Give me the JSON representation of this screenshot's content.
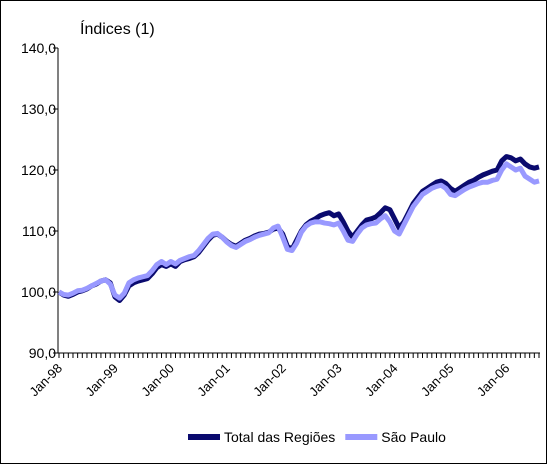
{
  "chart_data": {
    "type": "line",
    "title": "Índices (1)",
    "categories": [
      "Jan-98",
      null,
      null,
      null,
      null,
      null,
      null,
      null,
      null,
      null,
      null,
      null,
      "Jan-99",
      null,
      null,
      null,
      null,
      null,
      null,
      null,
      null,
      null,
      null,
      null,
      "Jan-00",
      null,
      null,
      null,
      null,
      null,
      null,
      null,
      null,
      null,
      null,
      null,
      "Jan-01",
      null,
      null,
      null,
      null,
      null,
      null,
      null,
      null,
      null,
      null,
      null,
      "Jan-02",
      null,
      null,
      null,
      null,
      null,
      null,
      null,
      null,
      null,
      null,
      null,
      "Jan-03",
      null,
      null,
      null,
      null,
      null,
      null,
      null,
      null,
      null,
      null,
      null,
      "Jan-04",
      null,
      null,
      null,
      null,
      null,
      null,
      null,
      null,
      null,
      null,
      null,
      "Jan-05",
      null,
      null,
      null,
      null,
      null,
      null,
      null,
      null,
      null,
      null,
      null,
      "Jan-06",
      null,
      null,
      null,
      null,
      null,
      null,
      null
    ],
    "series": [
      {
        "name": "Total das Regiões",
        "color": "#0a0a6e",
        "values": [
          100,
          99.5,
          99.3,
          99.6,
          100,
          100.2,
          100.5,
          101,
          101.3,
          101.8,
          102,
          101.5,
          99.2,
          98.6,
          99.5,
          101,
          101.5,
          101.8,
          102,
          102.2,
          103,
          104,
          104.5,
          104.2,
          104.6,
          104.2,
          105,
          105.3,
          105.5,
          105.8,
          106.5,
          107.5,
          108.5,
          109.3,
          109.5,
          109,
          108.3,
          107.8,
          107.5,
          108,
          108.5,
          108.8,
          109.2,
          109.5,
          109.6,
          109.8,
          110.3,
          110.5,
          109.5,
          107.5,
          107,
          108.5,
          110,
          111,
          111.6,
          112,
          112.5,
          112.8,
          113,
          112.5,
          112.8,
          111.5,
          110,
          109,
          110,
          111,
          111.8,
          112,
          112.3,
          113,
          113.8,
          113.5,
          112,
          110.5,
          111.5,
          113,
          114.5,
          115.5,
          116.5,
          117,
          117.5,
          118,
          118.2,
          117.8,
          117,
          116.5,
          117,
          117.5,
          118,
          118.3,
          118.8,
          119.2,
          119.5,
          119.8,
          120,
          121.5,
          122.2,
          122,
          121.5,
          121.8,
          121,
          120.5,
          120.3,
          120.5
        ]
      },
      {
        "name": "São Paulo",
        "color": "#9999ff",
        "values": [
          100,
          99.6,
          99.5,
          99.8,
          100.2,
          100.3,
          100.6,
          101,
          101.4,
          101.8,
          102,
          101.3,
          99.5,
          99,
          99.8,
          101.5,
          102,
          102.3,
          102.5,
          102.7,
          103.5,
          104.5,
          105,
          104.5,
          105,
          104.6,
          105.2,
          105.5,
          105.8,
          106,
          106.8,
          107.8,
          108.8,
          109.5,
          109.6,
          109,
          108.2,
          107.6,
          107.3,
          107.8,
          108.3,
          108.6,
          109,
          109.3,
          109.5,
          109.7,
          110.5,
          110.8,
          109,
          107,
          106.8,
          108,
          109.8,
          110.8,
          111.3,
          111.5,
          111.5,
          111.3,
          111.2,
          111,
          111.3,
          110,
          108.5,
          108.3,
          109.5,
          110.5,
          111,
          111.2,
          111.3,
          112,
          112.5,
          111.5,
          110,
          109.5,
          111,
          112.5,
          114,
          115,
          116,
          116.5,
          117,
          117.3,
          117.5,
          117,
          116,
          115.8,
          116.3,
          116.8,
          117.2,
          117.5,
          117.8,
          118,
          118,
          118.3,
          118.5,
          120,
          121,
          120.5,
          120,
          120.3,
          119,
          118.5,
          118,
          118.2
        ]
      }
    ],
    "ylim": [
      90,
      140
    ],
    "yticks": [
      {
        "value": 90,
        "label": "90,0"
      },
      {
        "value": 100,
        "label": "100,0"
      },
      {
        "value": 110,
        "label": "110,0"
      },
      {
        "value": 120,
        "label": "120,0"
      },
      {
        "value": 130,
        "label": "130,0"
      },
      {
        "value": 140,
        "label": "140,0"
      }
    ],
    "grid": false,
    "legend": "bottom"
  }
}
